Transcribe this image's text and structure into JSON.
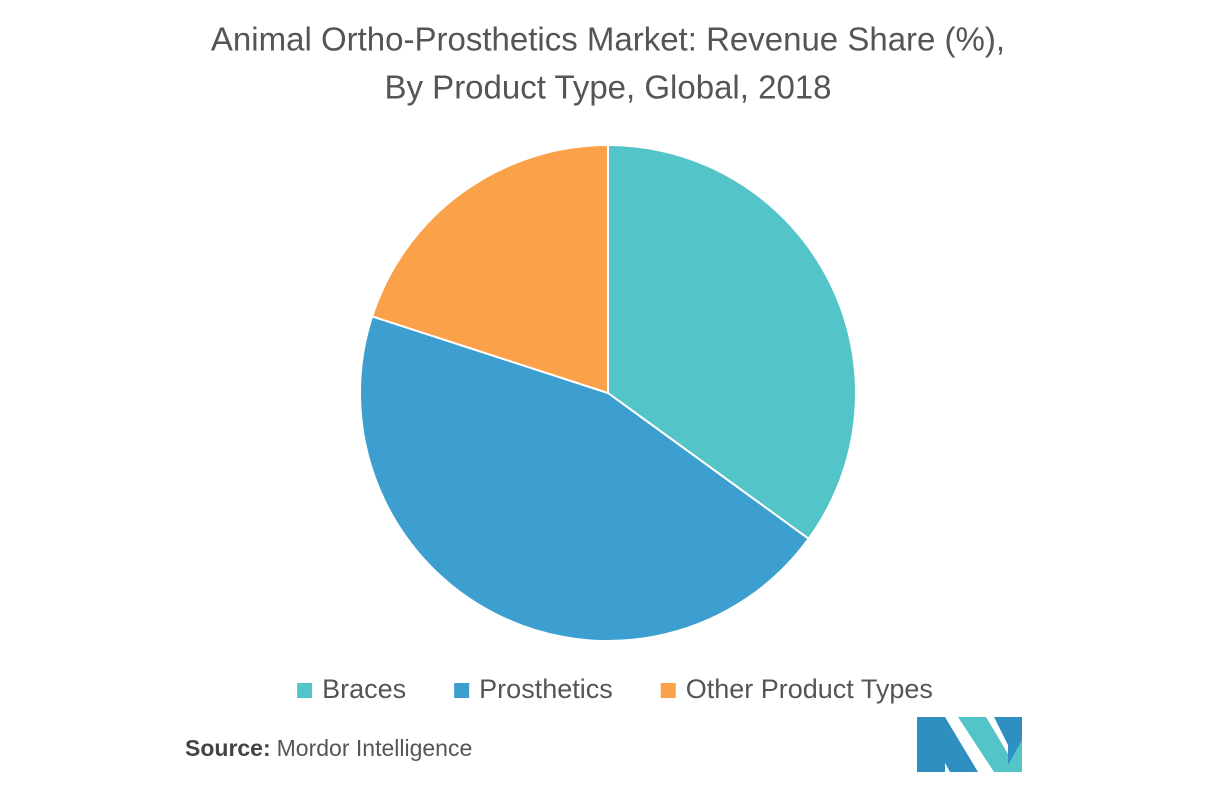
{
  "chart_data": {
    "type": "pie",
    "title": [
      "Animal Ortho-Prosthetics Market: Revenue Share (%),",
      "By Product Type, Global, 2018"
    ],
    "categories": [
      "Braces",
      "Prosthetics",
      "Other Product Types"
    ],
    "values": [
      35,
      45,
      20
    ],
    "colors": [
      "#53c4c7",
      "#3d9fd0",
      "#fba14a"
    ],
    "source_label": "Source:",
    "source": "Mordor Intelligence"
  }
}
